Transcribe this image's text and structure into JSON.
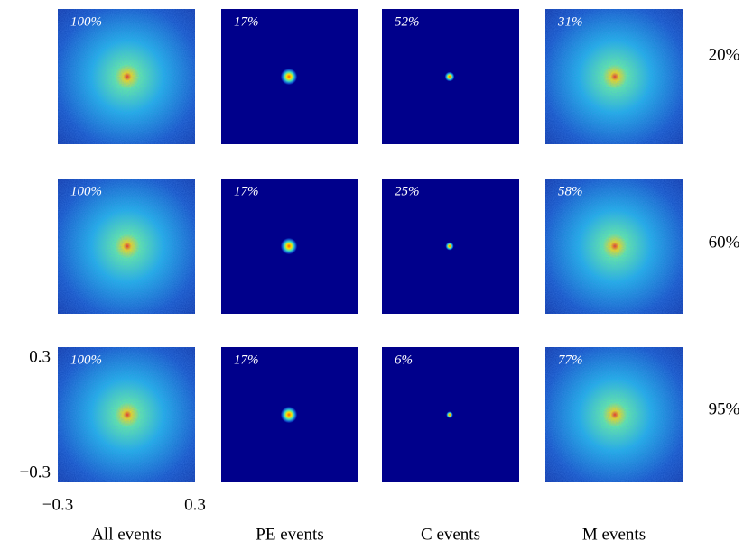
{
  "chart_data": {
    "type": "image-grid",
    "columns": [
      "All events",
      "PE events",
      "C events",
      "M events"
    ],
    "rows": [
      "20%",
      "60%",
      "95%"
    ],
    "panel_labels": [
      [
        "100%",
        "17%",
        "52%",
        "31%"
      ],
      [
        "100%",
        "17%",
        "25%",
        "58%"
      ],
      [
        "100%",
        "17%",
        "6%",
        "77%"
      ]
    ],
    "xlim": [
      -0.3,
      0.3
    ],
    "ylim": [
      -0.3,
      0.3
    ],
    "xticks": [
      {
        "value": -0.3,
        "label": "−0.3"
      },
      0.3
    ],
    "yticks": [
      {
        "value": -0.3,
        "label": "−0.3"
      },
      0.3
    ]
  }
}
